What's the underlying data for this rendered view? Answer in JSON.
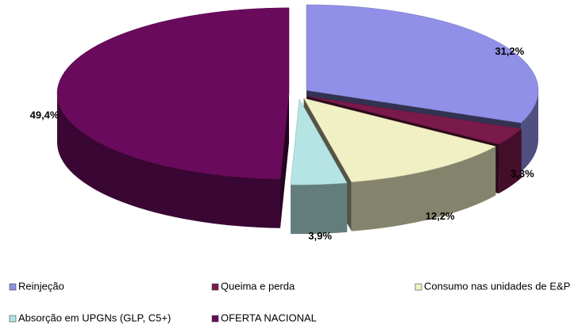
{
  "chart_data": {
    "type": "pie",
    "categories": [
      "Reinjeção",
      "Queima e perda",
      "Consumo nas unidades de E&P",
      "Absorção em UPGNs (GLP, C5+)",
      "OFERTA NACIONAL"
    ],
    "values": [
      31.2,
      3.3,
      12.2,
      3.9,
      49.4
    ],
    "value_labels": [
      "31,2%",
      "3,3%",
      "12,2%",
      "3,9%",
      "49,4%"
    ],
    "colors": [
      "#9090e8",
      "#7a1a4a",
      "#f0f0c4",
      "#b4e4e4",
      "#6a0a5c"
    ]
  }
}
